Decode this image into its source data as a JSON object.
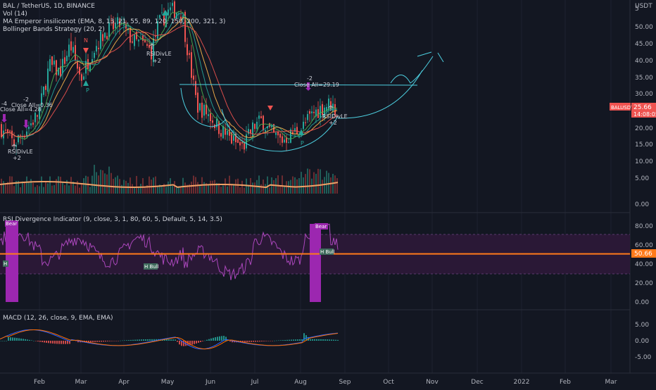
{
  "header": {
    "symbol_line": "BAL / TetherUS, 1D, BINANCE",
    "vol_line": "Vol (14)",
    "ma_line": "MA Emperor insiliconot (EMA, 8, 13, 21, 55, 89, 120, 150, 200, 321, 3)",
    "bb_line": "Bollinger Bands Strategy (20, 2)",
    "currency": "USDT"
  },
  "price_tag": {
    "symbol": "BALUSDT",
    "value": "25.66",
    "countdown": "14:08:05"
  },
  "rsi_tag": "50.66",
  "annotations": {
    "left_close": "Close All=4.28",
    "left_minus": "-4",
    "left_close2": "Close All=0.36",
    "left_minus2": "-2",
    "left_rsidivle": "RSIDivLE",
    "left_plus": "+2",
    "mid_rsidivle": "RSIDivLE",
    "mid_plus": "+2",
    "aug_minus": "-2",
    "aug_close": "Close All=29.19",
    "aug_rsidivle": "RSIDivLE",
    "aug_plus": "+2",
    "tri_p1": "P",
    "tri_p2": "P",
    "tri_n": "N",
    "rsi_bear1": "Bear",
    "rsi_bear2": "Bear",
    "rsi_hbull1": "H Bull",
    "rsi_hbull2": "H Bull",
    "rsi_h_left": "H"
  },
  "panes": {
    "rsi_title": "RSI Divergence Indicator (9, close, 3, 1, 80, 60, 5, Default, 5, 14, 3.5)",
    "macd_title": "MACD (12, 26, close, 9, EMA, EMA)"
  },
  "chart_data": [
    {
      "type": "candlestick",
      "title": "BAL / TetherUS, 1D, BINANCE",
      "y_axis_labels": [
        "5",
        "50.00",
        "45.00",
        "40.00",
        "35.00",
        "30.00",
        "20.00",
        "15.00",
        "10.00",
        "5.00",
        "0.00"
      ],
      "ylim": [
        0,
        55
      ],
      "x_ticks": [
        "Feb",
        "Mar",
        "Apr",
        "May",
        "Jun",
        "Jul",
        "Aug",
        "Sep",
        "Oct",
        "Nov",
        "Dec",
        "2022",
        "Feb",
        "Mar"
      ],
      "x_dates": [
        "2021-01-10",
        "2021-01-25",
        "2021-02-10",
        "2021-02-25",
        "2021-03-10",
        "2021-03-25",
        "2021-04-10",
        "2021-04-25",
        "2021-05-10",
        "2021-05-15",
        "2021-05-25",
        "2021-06-10",
        "2021-06-25",
        "2021-07-10",
        "2021-07-25",
        "2021-08-10",
        "2021-08-20",
        "2021-08-25"
      ],
      "close_approx": [
        22,
        18,
        40,
        44,
        35,
        46,
        52,
        54,
        56,
        34,
        30,
        22,
        16,
        24,
        18,
        22,
        29,
        25.66
      ],
      "volume_ma_approx": [
        4,
        4,
        5,
        4,
        5,
        4,
        5,
        5,
        6,
        6,
        5,
        4,
        4,
        3,
        3,
        4,
        5,
        6
      ],
      "last_price": 25.66
    },
    {
      "type": "line",
      "title": "RSI Divergence Indicator (9, close, 3, 1, 80, 60, 5, Default, 5, 14, 3.5)",
      "y_axis_labels": [
        "80.00",
        "60.00",
        "40.00",
        "20.00",
        "0.00"
      ],
      "ylim": [
        0,
        90
      ],
      "bands": {
        "upper": 70,
        "lower": 30,
        "mid": 50
      },
      "last_value": 50.66
    },
    {
      "type": "bar",
      "title": "MACD (12, 26, close, 9, EMA, EMA)",
      "y_axis_labels": [
        "5.00",
        "0.00",
        "-5.00"
      ],
      "ylim": [
        -7,
        7
      ]
    }
  ],
  "colors": {
    "bg": "#131722",
    "up": "#26a69a",
    "down": "#ef5350",
    "rsi_line": "#9c27b0",
    "rsi_band": "#3a1f4d",
    "mid_line": "#ff7a1a",
    "macd": "#2962ff",
    "signal": "#ff6d00",
    "pattern": "#4dd0e1",
    "price_tag": "#ef5350"
  }
}
